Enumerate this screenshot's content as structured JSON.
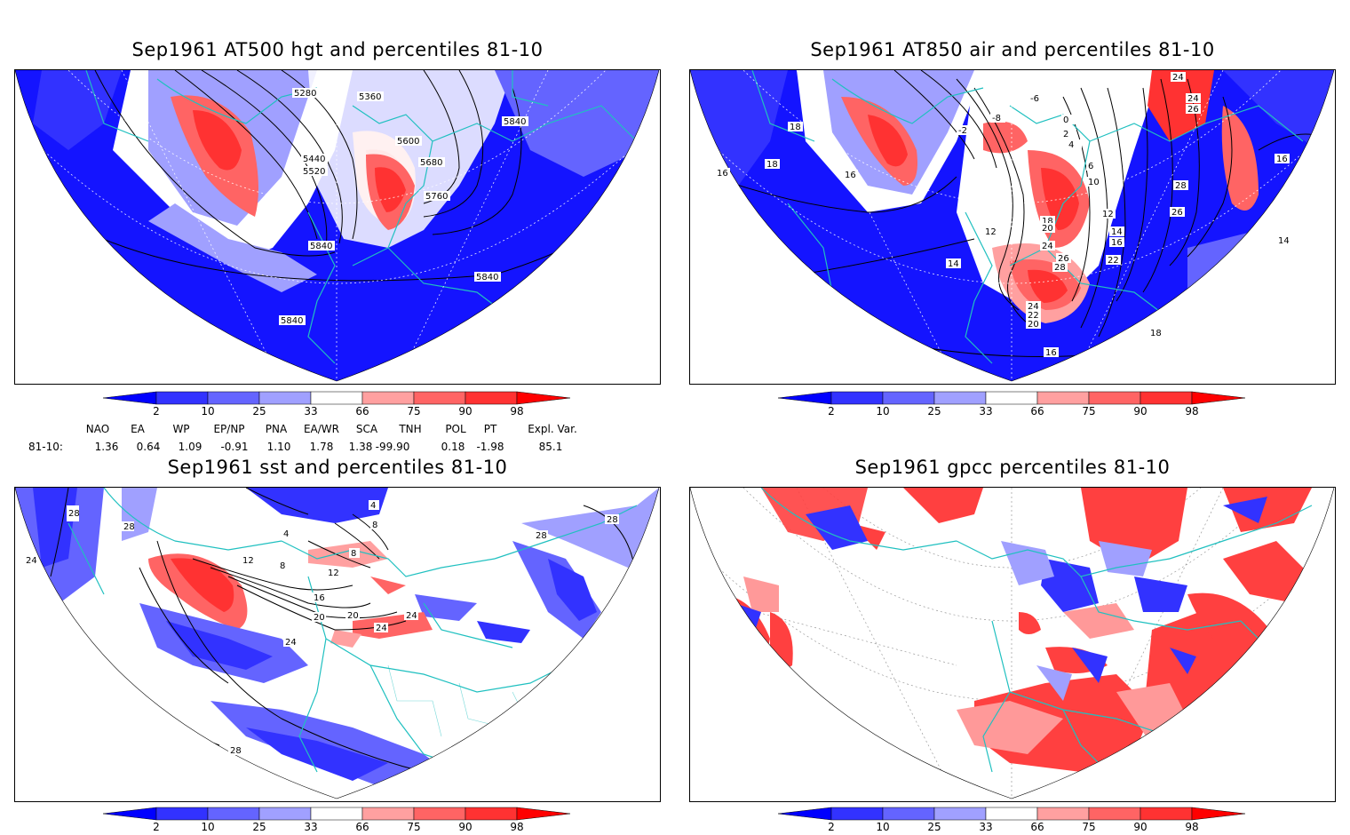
{
  "panels": [
    {
      "id": "hgt",
      "title": "Sep1961 AT500 hgt and percentiles 81-10",
      "contour_labels": [
        "5280",
        "5360",
        "5440",
        "5520",
        "5600",
        "5680",
        "5760",
        "5840",
        "5840",
        "5840",
        "5840"
      ]
    },
    {
      "id": "air",
      "title": "Sep1961 AT850 air and percentiles 81-10",
      "contour_labels": [
        "24",
        "24",
        "26",
        "18",
        "16",
        "18",
        "16",
        "-6",
        "-8",
        "0",
        "2",
        "4",
        "6",
        "10",
        "12",
        "12",
        "14",
        "16",
        "18",
        "20",
        "24",
        "26",
        "28",
        "22",
        "24",
        "22",
        "20",
        "28",
        "26",
        "16",
        "14",
        "14",
        "16",
        "18",
        "-2"
      ]
    },
    {
      "id": "sst",
      "title": "Sep1961 sst and percentiles 81-10",
      "contour_labels": [
        "28",
        "28",
        "24",
        "4",
        "8",
        "12",
        "8",
        "12",
        "16",
        "20",
        "20",
        "24",
        "24",
        "24",
        "28",
        "28",
        "28",
        "8",
        "4"
      ]
    },
    {
      "id": "gpcc",
      "title": "Sep1961 gpcc percentiles 81-10",
      "contour_labels": []
    }
  ],
  "colorbar": {
    "labels": [
      "2",
      "10",
      "25",
      "33",
      "66",
      "75",
      "90",
      "98"
    ],
    "colors": [
      "#0000ff",
      "#3232ff",
      "#6464ff",
      "#a0a0ff",
      "#ffffff",
      "#ffa0a0",
      "#ff6464",
      "#ff3232",
      "#ff0000"
    ]
  },
  "indices": {
    "headers": [
      "NAO",
      "EA",
      "WP",
      "EP/NP",
      "PNA",
      "EA/WR",
      "SCA",
      "TNH",
      "POL",
      "PT",
      "Expl. Var."
    ],
    "row_label": "81-10:",
    "values": [
      "1.36",
      "0.64",
      "1.09",
      "-0.91",
      "1.10",
      "1.78",
      "1.38",
      "-99.90",
      "0.18",
      "-1.98",
      "85.1"
    ]
  },
  "colors": {
    "coast": "#20c0c0",
    "frame": "#000000",
    "low": "#0000ff",
    "high": "#ff0000"
  }
}
